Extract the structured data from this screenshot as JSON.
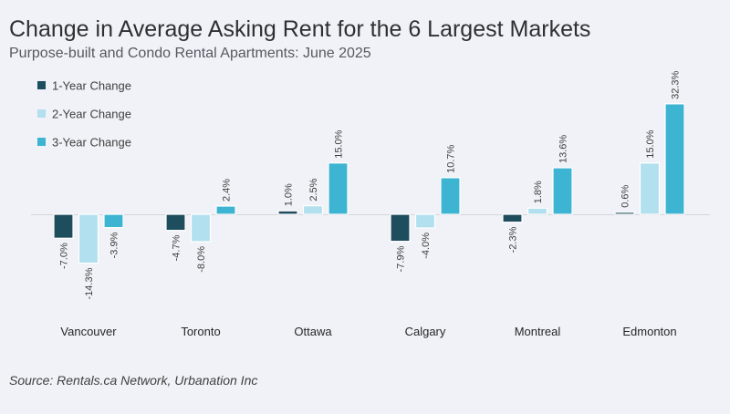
{
  "chart_data": {
    "type": "bar",
    "title": "Change in Average Asking Rent for the 6 Largest Markets",
    "subtitle": "Purpose-built and Condo Rental Apartments: June 2025",
    "source": "Source: Rentals.ca Network, Urbanation Inc",
    "xlabel": "",
    "ylabel": "",
    "ylim": [
      -15,
      33
    ],
    "grid": false,
    "legend_position": "top-left",
    "categories": [
      "Vancouver",
      "Toronto",
      "Ottawa",
      "Calgary",
      "Montreal",
      "Edmonton"
    ],
    "series": [
      {
        "name": "1-Year Change",
        "color": "#1e4d5e",
        "values": [
          -7.0,
          -4.7,
          1.0,
          -7.9,
          -2.3,
          0.6
        ],
        "labels": [
          "-7.0%",
          "-4.7%",
          "1.0%",
          "-7.9%",
          "-2.3%",
          "0.6%"
        ]
      },
      {
        "name": "2-Year Change",
        "color": "#b3e0ee",
        "values": [
          -14.3,
          -8.0,
          2.5,
          -4.0,
          1.8,
          15.0
        ],
        "labels": [
          "-14.3%",
          "-8.0%",
          "2.5%",
          "-4.0%",
          "1.8%",
          "15.0%"
        ]
      },
      {
        "name": "3-Year Change",
        "color": "#3db4d2",
        "values": [
          -3.9,
          2.4,
          15.0,
          10.7,
          13.6,
          32.3
        ],
        "labels": [
          "-3.9%",
          "2.4%",
          "15.0%",
          "10.7%",
          "13.6%",
          "32.3%"
        ]
      }
    ]
  }
}
